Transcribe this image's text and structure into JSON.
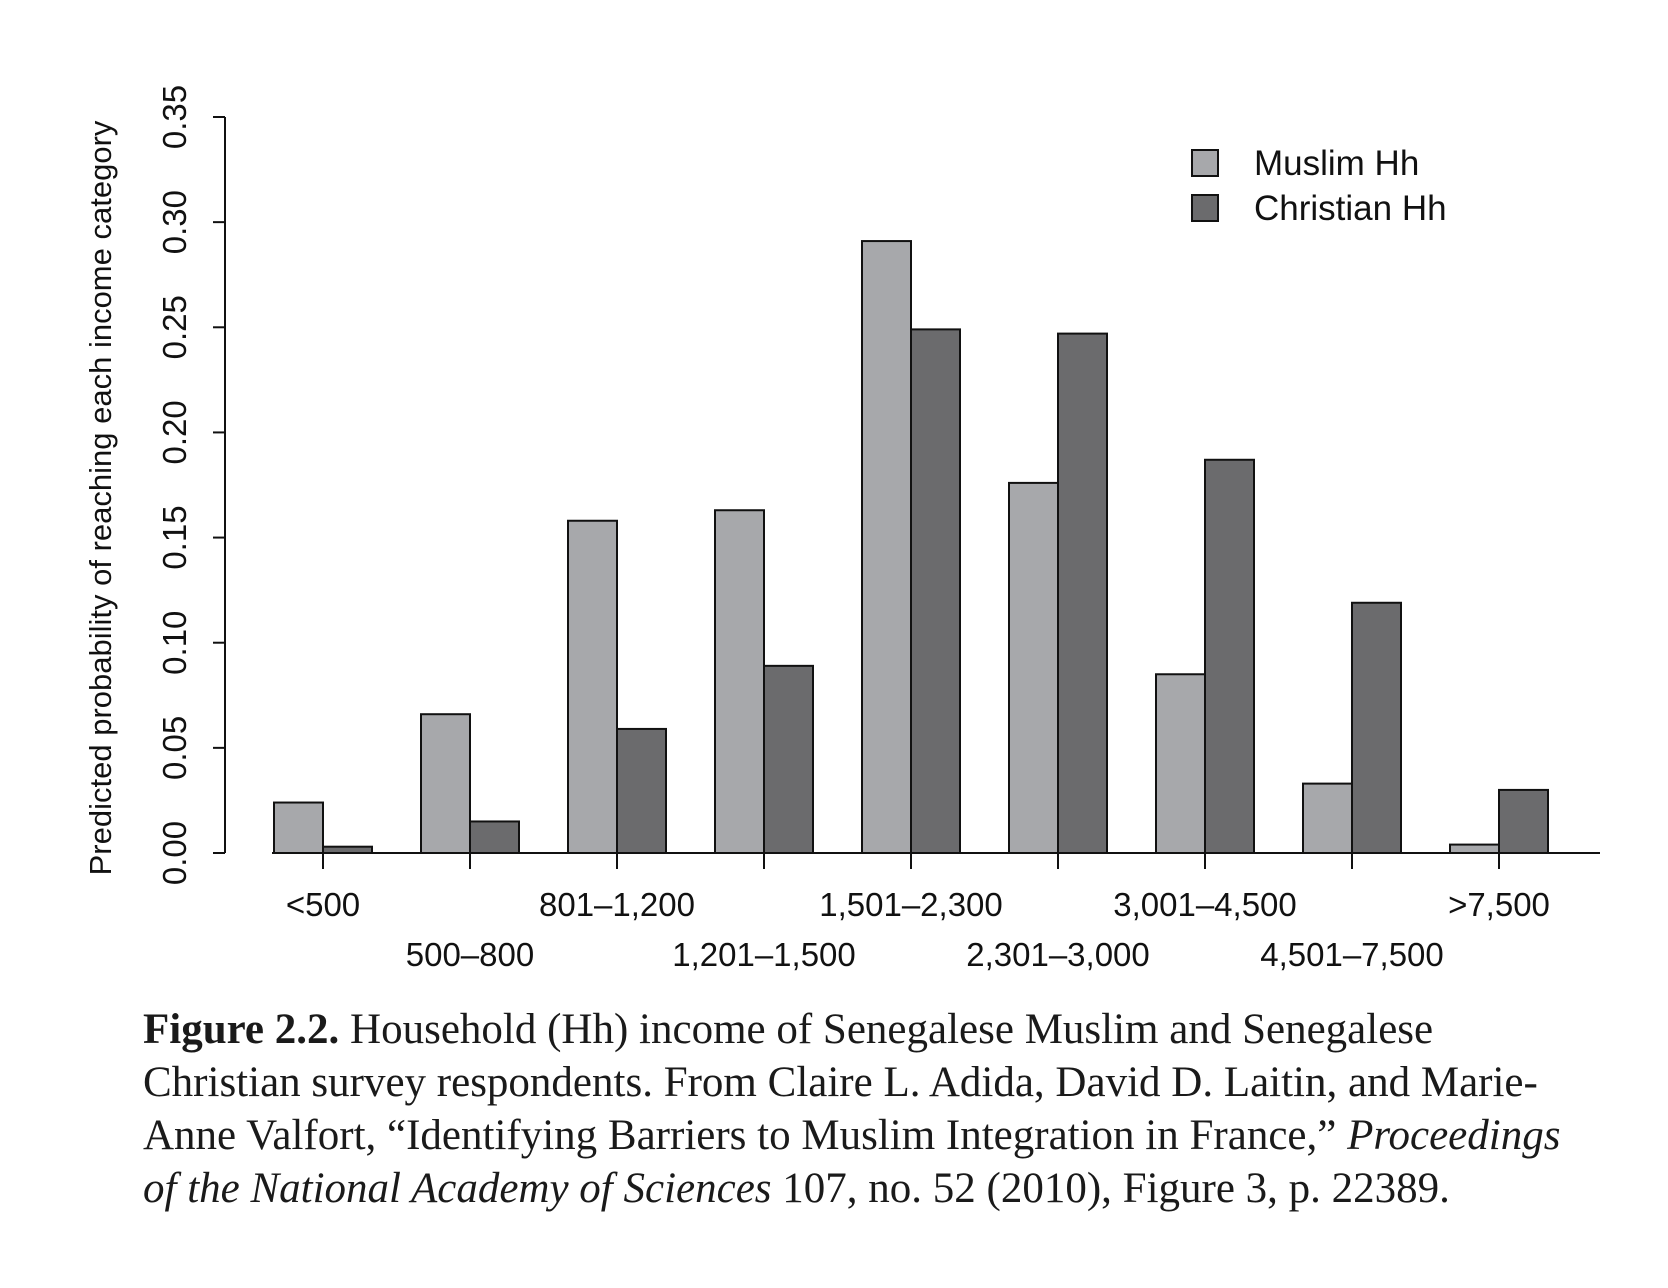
{
  "chart_data": {
    "type": "bar",
    "ylabel": "Predicted probability of reaching each income category",
    "xlabel": "",
    "ylim": [
      0,
      0.35
    ],
    "yticks": [
      "0.00",
      "0.05",
      "0.10",
      "0.15",
      "0.20",
      "0.25",
      "0.30",
      "0.35"
    ],
    "categories": [
      "<500",
      "500–800",
      "801–1,200",
      "1,201–1,500",
      "1,501–2,300",
      "2,301–3,000",
      "3,001–4,500",
      "4,501–7,500",
      ">7,500"
    ],
    "series": [
      {
        "name": "Muslim Hh",
        "color": "#a7a8ab",
        "values": [
          0.024,
          0.066,
          0.158,
          0.163,
          0.291,
          0.176,
          0.085,
          0.033,
          0.004
        ]
      },
      {
        "name": "Christian Hh",
        "color": "#6b6b6d",
        "values": [
          0.003,
          0.015,
          0.059,
          0.089,
          0.249,
          0.247,
          0.187,
          0.119,
          0.03
        ]
      }
    ],
    "legend_position": "top-right",
    "grid": false
  },
  "caption": {
    "label": "Figure 2.2.",
    "text_before": " Household (Hh) income of Senegalese Muslim and Senegalese Christian survey respondents. From Claire L. Adida, David D. Laitin, and Marie-Anne Valfort, “Identifying Barriers to Muslim Integration in France,” ",
    "journal": "Proceedings of the National Academy of Sciences",
    "text_after": " 107, no. 52 (2010), Figure 3, p. 22389."
  }
}
